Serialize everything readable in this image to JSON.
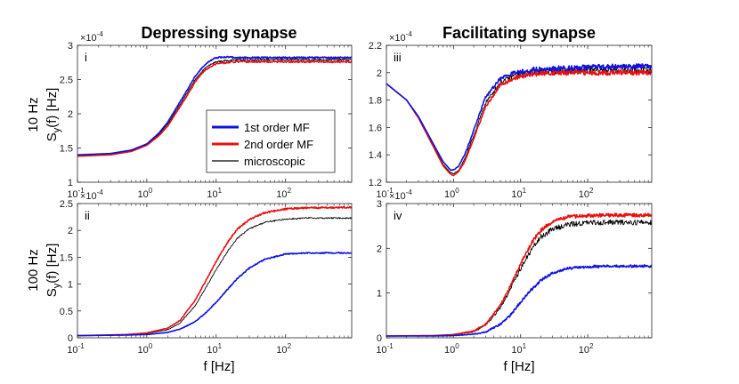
{
  "colors": {
    "first_order": "#1010e0",
    "second_order": "#e81010",
    "microscopic": "#000000",
    "axis": "#262626"
  },
  "titles": {
    "left": "Depressing synapse",
    "right": "Facilitating synapse"
  },
  "row_labels": {
    "top": "10 Hz",
    "bottom": "100 Hz"
  },
  "y_label": {
    "main": "S",
    "sub": "y",
    "rest": "(f)   [Hz]"
  },
  "x_label": "f   [Hz]",
  "exponent": {
    "base": "×10",
    "power": "-4"
  },
  "legend": {
    "entries": [
      {
        "key": "first_order",
        "label": "1st order MF"
      },
      {
        "key": "second_order",
        "label": "2nd order MF"
      },
      {
        "key": "microscopic",
        "label": "microscopic"
      }
    ]
  },
  "chart_data": [
    {
      "type": "line",
      "panel_label": "i",
      "xscale": "log",
      "xlim": [
        0.1,
        900
      ],
      "ylim": [
        1,
        3
      ],
      "x_ticks": [
        0.1,
        1,
        10,
        100
      ],
      "y_ticks": [
        1,
        1.5,
        2,
        2.5,
        3
      ],
      "y_tick_labels": [
        "1",
        "1.5",
        "2",
        "2.5",
        "3"
      ],
      "series": [
        {
          "name": "1st order MF",
          "key": "first_order",
          "noise": 0.012,
          "x": [
            0.1,
            0.3,
            0.6,
            1,
            1.5,
            2,
            3,
            4,
            5,
            6,
            7,
            8,
            10,
            15,
            20,
            50,
            100,
            900
          ],
          "y": [
            1.4,
            1.42,
            1.47,
            1.56,
            1.72,
            1.88,
            2.17,
            2.38,
            2.55,
            2.65,
            2.72,
            2.77,
            2.82,
            2.83,
            2.82,
            2.82,
            2.82,
            2.82
          ]
        },
        {
          "name": "2nd order MF",
          "key": "second_order",
          "noise": 0.012,
          "x": [
            0.1,
            0.3,
            0.6,
            1,
            1.5,
            2,
            3,
            4,
            5,
            6,
            7,
            8,
            10,
            15,
            20,
            50,
            100,
            900
          ],
          "y": [
            1.38,
            1.4,
            1.45,
            1.54,
            1.68,
            1.82,
            2.1,
            2.3,
            2.47,
            2.57,
            2.64,
            2.68,
            2.73,
            2.75,
            2.76,
            2.76,
            2.76,
            2.76
          ]
        },
        {
          "name": "microscopic",
          "key": "microscopic",
          "noise": 0.012,
          "x": [
            0.1,
            0.3,
            0.6,
            1,
            1.5,
            2,
            3,
            4,
            5,
            6,
            7,
            8,
            10,
            15,
            20,
            50,
            100,
            900
          ],
          "y": [
            1.39,
            1.41,
            1.46,
            1.55,
            1.7,
            1.85,
            2.13,
            2.34,
            2.5,
            2.6,
            2.67,
            2.71,
            2.76,
            2.78,
            2.79,
            2.79,
            2.79,
            2.79
          ]
        }
      ]
    },
    {
      "type": "line",
      "panel_label": "iii",
      "xscale": "log",
      "xlim": [
        0.1,
        900
      ],
      "ylim": [
        1.2,
        2.2
      ],
      "x_ticks": [
        0.1,
        1,
        10,
        100
      ],
      "y_ticks": [
        1.2,
        1.4,
        1.6,
        1.8,
        2,
        2.2
      ],
      "y_tick_labels": [
        "1.2",
        "1.4",
        "1.6",
        "1.8",
        "2",
        "2.2"
      ],
      "series": [
        {
          "name": "1st order MF",
          "key": "first_order",
          "noise": 0.018,
          "x": [
            0.1,
            0.2,
            0.3,
            0.5,
            0.7,
            0.9,
            1,
            1.2,
            1.5,
            2,
            3,
            5,
            8,
            15,
            30,
            100,
            900
          ],
          "y": [
            1.92,
            1.8,
            1.68,
            1.48,
            1.35,
            1.29,
            1.29,
            1.32,
            1.41,
            1.58,
            1.82,
            1.96,
            2.0,
            2.02,
            2.03,
            2.04,
            2.05
          ]
        },
        {
          "name": "2nd order MF",
          "key": "second_order",
          "noise": 0.018,
          "x": [
            0.1,
            0.2,
            0.3,
            0.5,
            0.7,
            0.9,
            1,
            1.2,
            1.5,
            2,
            3,
            5,
            8,
            15,
            30,
            100,
            900
          ],
          "y": [
            1.92,
            1.8,
            1.67,
            1.46,
            1.32,
            1.26,
            1.25,
            1.28,
            1.36,
            1.52,
            1.75,
            1.91,
            1.96,
            1.99,
            2.0,
            2.0,
            2.0
          ]
        },
        {
          "name": "microscopic",
          "key": "microscopic",
          "noise": 0.024,
          "x": [
            0.1,
            0.2,
            0.3,
            0.5,
            0.7,
            0.9,
            1,
            1.2,
            1.5,
            2,
            3,
            5,
            8,
            15,
            30,
            100,
            900
          ],
          "y": [
            1.92,
            1.8,
            1.67,
            1.47,
            1.33,
            1.27,
            1.26,
            1.29,
            1.38,
            1.54,
            1.78,
            1.93,
            1.98,
            2.0,
            2.01,
            2.02,
            2.02
          ]
        }
      ]
    },
    {
      "type": "line",
      "panel_label": "ii",
      "xscale": "log",
      "xlim": [
        0.1,
        900
      ],
      "ylim": [
        0,
        2.5
      ],
      "x_ticks": [
        0.1,
        1,
        10,
        100
      ],
      "y_ticks": [
        0,
        0.5,
        1,
        1.5,
        2,
        2.5
      ],
      "y_tick_labels": [
        "0",
        "0.5",
        "1",
        "1.5",
        "2",
        "2.5"
      ],
      "series": [
        {
          "name": "1st order MF",
          "key": "first_order",
          "noise": 0.01,
          "x": [
            0.1,
            0.5,
            1,
            2,
            3,
            5,
            7,
            10,
            15,
            20,
            30,
            50,
            100,
            200,
            900
          ],
          "y": [
            0.04,
            0.05,
            0.06,
            0.1,
            0.16,
            0.3,
            0.46,
            0.66,
            0.92,
            1.1,
            1.3,
            1.46,
            1.56,
            1.58,
            1.58
          ]
        },
        {
          "name": "2nd order MF",
          "key": "second_order",
          "noise": 0.014,
          "x": [
            0.1,
            0.5,
            1,
            2,
            3,
            5,
            7,
            10,
            15,
            20,
            30,
            50,
            100,
            200,
            900
          ],
          "y": [
            0.04,
            0.06,
            0.09,
            0.18,
            0.32,
            0.7,
            1.05,
            1.42,
            1.8,
            2.02,
            2.2,
            2.33,
            2.4,
            2.42,
            2.43
          ]
        },
        {
          "name": "microscopic",
          "key": "microscopic",
          "noise": 0.012,
          "x": [
            0.1,
            0.5,
            1,
            2,
            3,
            5,
            7,
            10,
            15,
            20,
            30,
            50,
            100,
            200,
            900
          ],
          "y": [
            0.04,
            0.06,
            0.08,
            0.15,
            0.27,
            0.6,
            0.92,
            1.27,
            1.63,
            1.85,
            2.03,
            2.15,
            2.21,
            2.23,
            2.23
          ]
        }
      ]
    },
    {
      "type": "line",
      "panel_label": "iv",
      "xscale": "log",
      "xlim": [
        0.1,
        900
      ],
      "ylim": [
        0,
        3
      ],
      "x_ticks": [
        0.1,
        1,
        10,
        100
      ],
      "y_ticks": [
        0,
        1,
        2,
        3
      ],
      "y_tick_labels": [
        "0",
        "1",
        "2",
        "3"
      ],
      "series": [
        {
          "name": "1st order MF",
          "key": "first_order",
          "noise": 0.03,
          "x": [
            0.1,
            0.5,
            1,
            2,
            3,
            5,
            7,
            10,
            15,
            20,
            30,
            50,
            100,
            200,
            900
          ],
          "y": [
            0.04,
            0.04,
            0.05,
            0.08,
            0.13,
            0.3,
            0.5,
            0.8,
            1.1,
            1.28,
            1.45,
            1.55,
            1.59,
            1.6,
            1.6
          ]
        },
        {
          "name": "2nd order MF",
          "key": "second_order",
          "noise": 0.04,
          "x": [
            0.1,
            0.5,
            1,
            2,
            3,
            5,
            7,
            10,
            15,
            20,
            30,
            50,
            100,
            200,
            900
          ],
          "y": [
            0.04,
            0.05,
            0.07,
            0.15,
            0.3,
            0.72,
            1.15,
            1.65,
            2.15,
            2.4,
            2.6,
            2.7,
            2.73,
            2.74,
            2.74
          ]
        },
        {
          "name": "microscopic",
          "key": "microscopic",
          "noise": 0.06,
          "x": [
            0.1,
            0.5,
            1,
            2,
            3,
            5,
            7,
            10,
            15,
            20,
            30,
            50,
            100,
            200,
            900
          ],
          "y": [
            0.04,
            0.05,
            0.07,
            0.14,
            0.28,
            0.68,
            1.08,
            1.55,
            2.0,
            2.25,
            2.43,
            2.53,
            2.57,
            2.58,
            2.58
          ]
        }
      ]
    }
  ]
}
